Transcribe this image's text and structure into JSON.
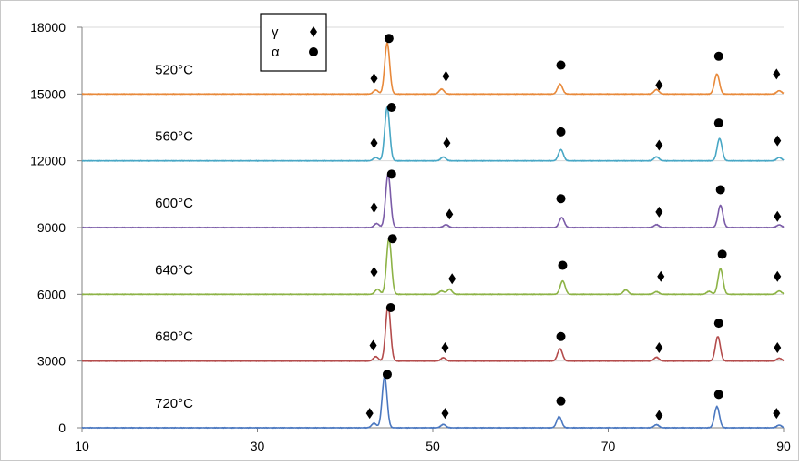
{
  "chart_data": {
    "type": "line",
    "x_ticks": [
      10,
      30,
      50,
      70,
      90
    ],
    "y_ticks": [
      0,
      3000,
      6000,
      9000,
      12000,
      15000,
      18000
    ],
    "xlim": [
      10,
      90
    ],
    "ylim": [
      0,
      18000
    ],
    "grid": {
      "horizontal": true,
      "vertical": false
    },
    "legend": {
      "placement": "top-center",
      "entries": [
        {
          "label": "γ",
          "marker": "diamond"
        },
        {
          "label": "α",
          "marker": "circle"
        }
      ]
    },
    "series": [
      {
        "name": "520°C",
        "color": "#E8893A",
        "baseline": 15000,
        "peaks": [
          [
            43.5,
            180
          ],
          [
            44.8,
            2300
          ],
          [
            51.0,
            220
          ],
          [
            64.5,
            450
          ],
          [
            75.5,
            200
          ],
          [
            82.4,
            900
          ],
          [
            89.5,
            150
          ]
        ],
        "markers": [
          {
            "type": "diamond",
            "x": 43.3,
            "y": 15700
          },
          {
            "type": "circle",
            "x": 45.0,
            "y": 17500
          },
          {
            "type": "diamond",
            "x": 51.5,
            "y": 15800
          },
          {
            "type": "circle",
            "x": 64.6,
            "y": 16300
          },
          {
            "type": "diamond",
            "x": 75.8,
            "y": 15400
          },
          {
            "type": "circle",
            "x": 82.6,
            "y": 16700
          },
          {
            "type": "diamond",
            "x": 89.2,
            "y": 15900
          }
        ]
      },
      {
        "name": "560°C",
        "color": "#48A7C5",
        "baseline": 12000,
        "peaks": [
          [
            43.5,
            150
          ],
          [
            44.8,
            2400
          ],
          [
            51.2,
            170
          ],
          [
            64.6,
            500
          ],
          [
            75.5,
            180
          ],
          [
            82.7,
            1000
          ],
          [
            89.5,
            150
          ]
        ],
        "markers": [
          {
            "type": "diamond",
            "x": 43.3,
            "y": 12800
          },
          {
            "type": "circle",
            "x": 45.3,
            "y": 14400
          },
          {
            "type": "diamond",
            "x": 51.6,
            "y": 12800
          },
          {
            "type": "circle",
            "x": 64.6,
            "y": 13300
          },
          {
            "type": "diamond",
            "x": 75.8,
            "y": 12700
          },
          {
            "type": "circle",
            "x": 82.6,
            "y": 13700
          },
          {
            "type": "diamond",
            "x": 89.3,
            "y": 12900
          }
        ]
      },
      {
        "name": "600°C",
        "color": "#7B5CA8",
        "baseline": 9000,
        "peaks": [
          [
            43.6,
            180
          ],
          [
            44.9,
            2400
          ],
          [
            51.5,
            130
          ],
          [
            64.7,
            450
          ],
          [
            75.5,
            130
          ],
          [
            82.8,
            1000
          ],
          [
            89.5,
            120
          ]
        ],
        "markers": [
          {
            "type": "diamond",
            "x": 43.3,
            "y": 9900
          },
          {
            "type": "circle",
            "x": 45.3,
            "y": 11400
          },
          {
            "type": "diamond",
            "x": 51.9,
            "y": 9600
          },
          {
            "type": "circle",
            "x": 64.6,
            "y": 10300
          },
          {
            "type": "diamond",
            "x": 75.8,
            "y": 9700
          },
          {
            "type": "circle",
            "x": 82.8,
            "y": 10700
          },
          {
            "type": "diamond",
            "x": 89.3,
            "y": 9500
          }
        ]
      },
      {
        "name": "640°C",
        "color": "#8DB346",
        "baseline": 6000,
        "peaks": [
          [
            43.7,
            230
          ],
          [
            45.0,
            2500
          ],
          [
            51.0,
            150
          ],
          [
            51.9,
            230
          ],
          [
            64.8,
            600
          ],
          [
            72.0,
            200
          ],
          [
            75.5,
            120
          ],
          [
            81.5,
            130
          ],
          [
            82.8,
            1150
          ],
          [
            89.5,
            150
          ]
        ],
        "markers": [
          {
            "type": "diamond",
            "x": 43.3,
            "y": 7000
          },
          {
            "type": "circle",
            "x": 45.4,
            "y": 8500
          },
          {
            "type": "diamond",
            "x": 52.2,
            "y": 6700
          },
          {
            "type": "circle",
            "x": 64.8,
            "y": 7300
          },
          {
            "type": "diamond",
            "x": 76.0,
            "y": 6800
          },
          {
            "type": "circle",
            "x": 83.0,
            "y": 7800
          },
          {
            "type": "diamond",
            "x": 89.3,
            "y": 6800
          }
        ]
      },
      {
        "name": "680°C",
        "color": "#B44C4C",
        "baseline": 3000,
        "peaks": [
          [
            43.5,
            200
          ],
          [
            44.9,
            2500
          ],
          [
            51.2,
            150
          ],
          [
            64.5,
            550
          ],
          [
            75.5,
            170
          ],
          [
            82.5,
            1100
          ],
          [
            89.5,
            130
          ]
        ],
        "markers": [
          {
            "type": "diamond",
            "x": 43.2,
            "y": 3700
          },
          {
            "type": "circle",
            "x": 45.2,
            "y": 5400
          },
          {
            "type": "diamond",
            "x": 51.4,
            "y": 3600
          },
          {
            "type": "circle",
            "x": 64.6,
            "y": 4100
          },
          {
            "type": "diamond",
            "x": 75.8,
            "y": 3600
          },
          {
            "type": "circle",
            "x": 82.6,
            "y": 4700
          },
          {
            "type": "diamond",
            "x": 89.3,
            "y": 3600
          }
        ]
      },
      {
        "name": "720°C",
        "color": "#4B78C0",
        "baseline": 0,
        "peaks": [
          [
            43.3,
            200
          ],
          [
            44.5,
            2300
          ],
          [
            51.2,
            150
          ],
          [
            64.4,
            500
          ],
          [
            75.5,
            140
          ],
          [
            82.4,
            950
          ],
          [
            89.5,
            120
          ]
        ],
        "markers": [
          {
            "type": "diamond",
            "x": 42.8,
            "y": 650
          },
          {
            "type": "circle",
            "x": 44.8,
            "y": 2400
          },
          {
            "type": "diamond",
            "x": 51.4,
            "y": 650
          },
          {
            "type": "circle",
            "x": 64.6,
            "y": 1200
          },
          {
            "type": "diamond",
            "x": 75.8,
            "y": 550
          },
          {
            "type": "circle",
            "x": 82.6,
            "y": 1500
          },
          {
            "type": "diamond",
            "x": 89.2,
            "y": 650
          }
        ]
      }
    ]
  }
}
